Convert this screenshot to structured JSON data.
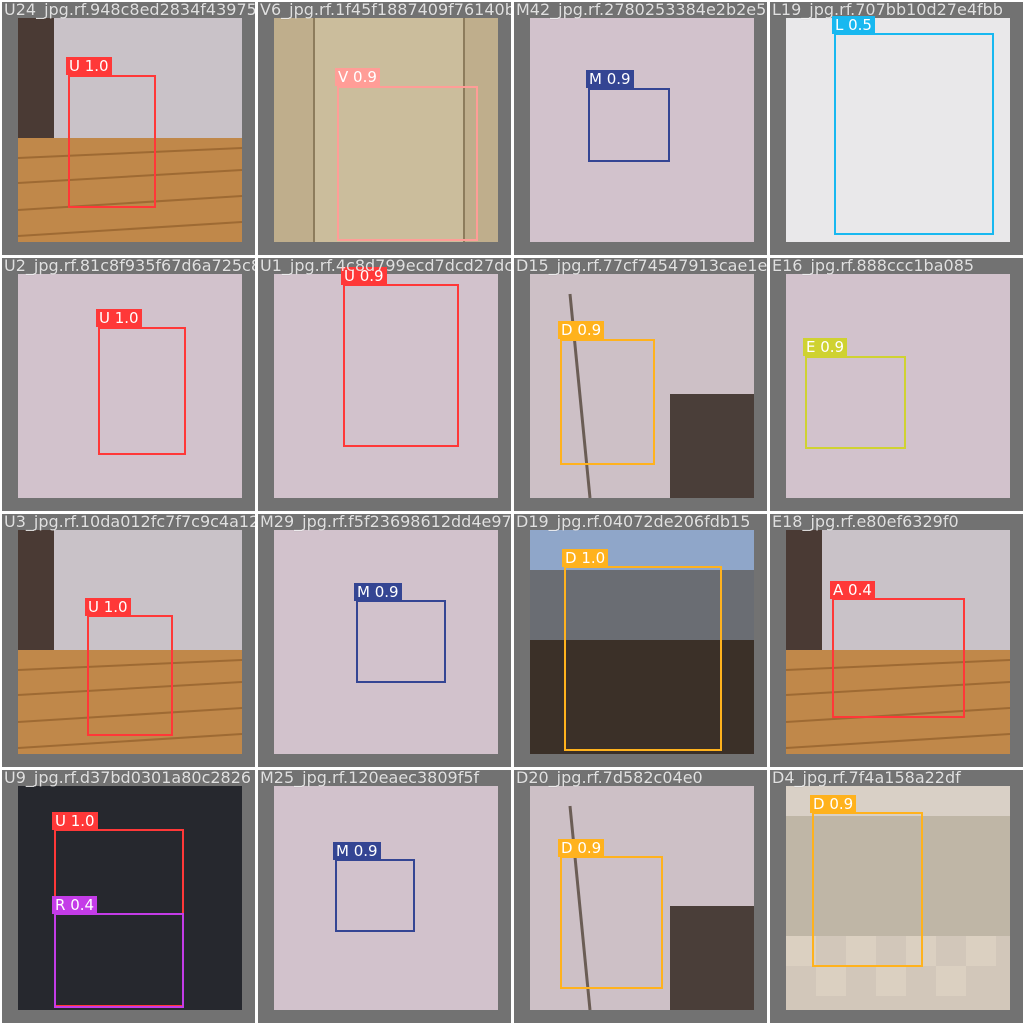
{
  "colors": {
    "U": "#ff3838",
    "V": "#ff9d97",
    "M": "#344593",
    "L": "#18b8f0",
    "D": "#ffb21d",
    "E": "#cfd231",
    "A": "#ff3838",
    "R": "#c43ce8"
  },
  "tiles": [
    {
      "filename": "U24_jpg.rf.948c8ed2834f43975d",
      "scene": "wood",
      "detections": [
        {
          "text": "U 1.0",
          "cls": "U"
        }
      ]
    },
    {
      "filename": "V6_jpg.rf.1f45f1887409f76140b992fd",
      "scene": "door",
      "detections": [
        {
          "text": "V 0.9",
          "cls": "V"
        }
      ]
    },
    {
      "filename": "M42_jpg.rf.2780253384e2b2e576f",
      "scene": "wall",
      "detections": [
        {
          "text": "M 0.9",
          "cls": "M"
        }
      ]
    },
    {
      "filename": "L19_jpg.rf.707bb10d27e4fbb",
      "scene": "white",
      "detections": [
        {
          "text": "L 0.5",
          "cls": "L"
        }
      ]
    },
    {
      "filename": "U2_jpg.rf.81c8f935f67d6a725c87",
      "scene": "wall",
      "detections": [
        {
          "text": "U 1.0",
          "cls": "U"
        }
      ]
    },
    {
      "filename": "U1_jpg.rf.4c8d799ecd7dcd27dc22",
      "scene": "wall",
      "detections": [
        {
          "text": "U 0.9",
          "cls": "U"
        }
      ]
    },
    {
      "filename": "D15_jpg.rf.77cf74547913cae1e",
      "scene": "room",
      "detections": [
        {
          "text": "D 0.9",
          "cls": "D"
        }
      ]
    },
    {
      "filename": "E16_jpg.rf.888ccc1ba085",
      "scene": "wall",
      "detections": [
        {
          "text": "E 0.9",
          "cls": "E"
        }
      ]
    },
    {
      "filename": "U3_jpg.rf.10da012fc7f7c9c4a126",
      "scene": "wood",
      "detections": [
        {
          "text": "U 1.0",
          "cls": "U"
        }
      ]
    },
    {
      "filename": "M29_jpg.rf.f5f23698612dd4e97f",
      "scene": "wall",
      "detections": [
        {
          "text": "M 0.9",
          "cls": "M"
        }
      ]
    },
    {
      "filename": "D19_jpg.rf.04072de206fdb15",
      "scene": "laptop",
      "detections": [
        {
          "text": "D 1.0",
          "cls": "D"
        }
      ]
    },
    {
      "filename": "E18_jpg.rf.e80ef6329f0",
      "scene": "wood",
      "detections": [
        {
          "text": "A 0.4",
          "cls": "A"
        }
      ]
    },
    {
      "filename": "U9_jpg.rf.d37bd0301a80c2826",
      "scene": "dark",
      "detections": [
        {
          "text": "U 1.0",
          "cls": "U"
        },
        {
          "text": "R 0.4",
          "cls": "R"
        }
      ]
    },
    {
      "filename": "M25_jpg.rf.120eaec3809f5f",
      "scene": "wall",
      "detections": [
        {
          "text": "M 0.9",
          "cls": "M"
        }
      ]
    },
    {
      "filename": "D20_jpg.rf.7d582c04e0",
      "scene": "room",
      "detections": [
        {
          "text": "D 0.9",
          "cls": "D"
        }
      ]
    },
    {
      "filename": "D4_jpg.rf.7f4a158a22df",
      "scene": "kitchen",
      "detections": [
        {
          "text": "D 0.9",
          "cls": "D"
        }
      ]
    }
  ]
}
